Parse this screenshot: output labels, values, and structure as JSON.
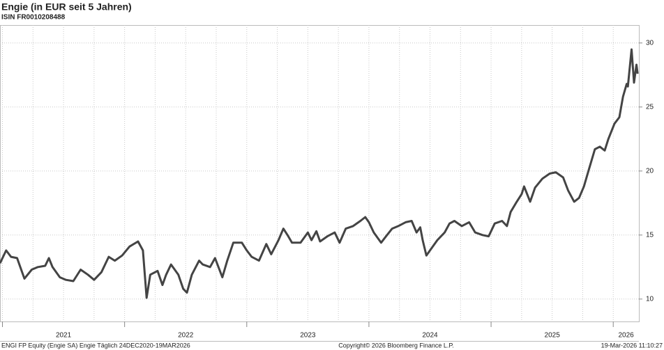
{
  "chart_data": {
    "type": "line",
    "title": "Engie (in EUR seit 5 Jahren)",
    "subtitle": "ISIN FR0010208488",
    "footer_left": "ENGI FP Equity (Engie SA) Engie Täglich 24DEC2020-19MAR2026",
    "footer_center": "Copyright© 2026 Bloomberg Finance L.P.",
    "footer_right": "19-Mar-2026 11:10:27",
    "color": "#444444",
    "grid": true,
    "x": [
      2020.98,
      2021.03,
      2021.07,
      2021.12,
      2021.18,
      2021.24,
      2021.29,
      2021.35,
      2021.38,
      2021.41,
      2021.47,
      2021.52,
      2021.58,
      2021.64,
      2021.7,
      2021.75,
      2021.81,
      2021.87,
      2021.92,
      2021.98,
      2022.04,
      2022.11,
      2022.15,
      2022.18,
      2022.21,
      2022.27,
      2022.31,
      2022.34,
      2022.38,
      2022.44,
      2022.48,
      2022.51,
      2022.55,
      2022.61,
      2022.64,
      2022.7,
      2022.74,
      2022.8,
      2022.84,
      2022.89,
      2022.96,
      2023.0,
      2023.04,
      2023.1,
      2023.16,
      2023.2,
      2023.26,
      2023.3,
      2023.34,
      2023.37,
      2023.44,
      2023.5,
      2023.53,
      2023.57,
      2023.6,
      2023.66,
      2023.72,
      2023.76,
      2023.81,
      2023.87,
      2023.93,
      2023.97,
      2024.0,
      2024.04,
      2024.1,
      2024.14,
      2024.19,
      2024.24,
      2024.3,
      2024.35,
      2024.39,
      2024.42,
      2024.44,
      2024.47,
      2024.5,
      2024.56,
      2024.62,
      2024.66,
      2024.7,
      2024.76,
      2024.82,
      2024.87,
      2024.93,
      2024.98,
      2025.03,
      2025.09,
      2025.13,
      2025.16,
      2025.21,
      2025.25,
      2025.27,
      2025.32,
      2025.36,
      2025.42,
      2025.48,
      2025.53,
      2025.59,
      2025.63,
      2025.68,
      2025.72,
      2025.76,
      2025.8,
      2025.85,
      2025.89,
      2025.93,
      2025.96,
      2026.01,
      2026.05,
      2026.08,
      2026.11,
      2026.12,
      2026.15,
      2026.17,
      2026.19,
      2026.2
    ],
    "values": [
      12.8,
      13.8,
      13.3,
      13.2,
      11.6,
      12.3,
      12.5,
      12.6,
      13.2,
      12.5,
      11.7,
      11.5,
      11.4,
      12.3,
      11.9,
      11.5,
      12.1,
      13.3,
      13.0,
      13.4,
      14.1,
      14.5,
      13.8,
      10.1,
      11.9,
      12.2,
      11.1,
      11.9,
      12.7,
      11.9,
      10.8,
      10.5,
      11.9,
      13.0,
      12.7,
      12.5,
      13.2,
      11.7,
      13.0,
      14.4,
      14.4,
      13.8,
      13.3,
      13.0,
      14.3,
      13.5,
      14.6,
      15.5,
      14.9,
      14.4,
      14.4,
      15.2,
      14.6,
      15.3,
      14.5,
      14.9,
      15.2,
      14.4,
      15.5,
      15.7,
      16.1,
      16.4,
      16.0,
      15.2,
      14.4,
      14.9,
      15.5,
      15.7,
      16.0,
      16.1,
      15.2,
      15.6,
      14.6,
      13.4,
      13.8,
      14.6,
      15.2,
      15.9,
      16.1,
      15.7,
      16.0,
      15.2,
      15.0,
      14.9,
      15.9,
      16.1,
      15.7,
      16.8,
      17.6,
      18.2,
      18.8,
      17.6,
      18.7,
      19.4,
      19.8,
      19.9,
      19.5,
      18.5,
      17.6,
      17.9,
      18.8,
      20.1,
      21.7,
      21.9,
      21.6,
      22.5,
      23.7,
      24.2,
      25.8,
      26.8,
      26.6,
      29.5,
      26.9,
      28.3,
      27.6
    ],
    "xlim": [
      2020.98,
      2026.21
    ],
    "xticks": [
      2021,
      2022,
      2023,
      2024,
      2025,
      2026
    ],
    "xminorticks": [
      2021,
      2021.25,
      2021.5,
      2021.75,
      2022,
      2022.25,
      2022.5,
      2022.75,
      2023,
      2023.25,
      2023.5,
      2023.75,
      2024,
      2024.25,
      2024.5,
      2024.75,
      2025,
      2025.25,
      2025.5,
      2025.75,
      2026
    ],
    "ylim": [
      8.25,
      31.4
    ],
    "yticks": [
      10,
      15,
      20,
      25,
      30
    ]
  }
}
